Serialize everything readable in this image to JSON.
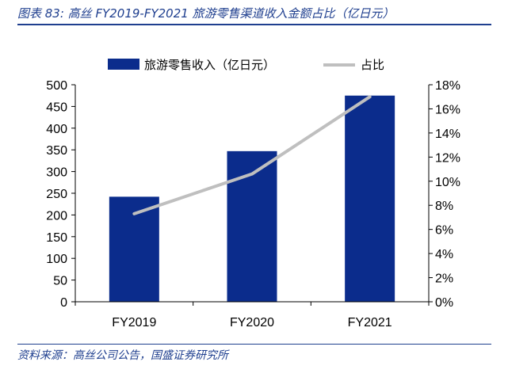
{
  "figure": {
    "title": "图表 83:  高丝 FY2019-FY2021 旅游零售渠道收入金额占比（亿日元）",
    "source": "资料来源：高丝公司公告，国盛证券研究所"
  },
  "colors": {
    "bar": "#0b2c8c",
    "line": "#bfbfbf",
    "title": "#1f3f8f",
    "axis": "#000000"
  },
  "chart_data": {
    "type": "bar",
    "categories": [
      "FY2019",
      "FY2020",
      "FY2021"
    ],
    "series": [
      {
        "name": "旅游零售收入（亿日元）",
        "type": "bar",
        "axis": "left",
        "values": [
          242,
          347,
          475
        ]
      },
      {
        "name": "占比",
        "type": "line",
        "axis": "right",
        "values": [
          7.3,
          10.6,
          17.0
        ]
      }
    ],
    "y_left": {
      "min": 0,
      "max": 500,
      "step": 50,
      "ticks": [
        "0",
        "50",
        "100",
        "150",
        "200",
        "250",
        "300",
        "350",
        "400",
        "450",
        "500"
      ]
    },
    "y_right": {
      "min": 0,
      "max": 18,
      "step": 2,
      "ticks": [
        "0%",
        "2%",
        "4%",
        "6%",
        "8%",
        "10%",
        "12%",
        "14%",
        "16%",
        "18%"
      ]
    },
    "grid": false,
    "legend": "top"
  }
}
